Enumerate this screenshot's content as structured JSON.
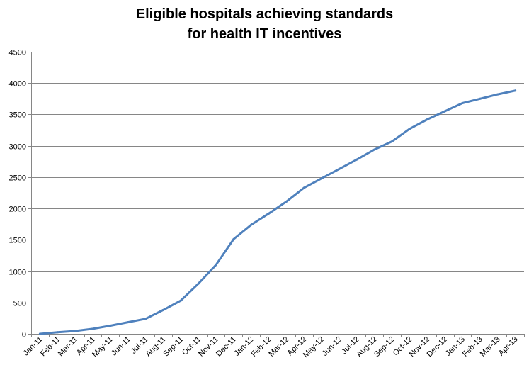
{
  "chart_data": {
    "type": "line",
    "title_lines": [
      "Eligible hospitals achieving standards",
      "for health IT incentives"
    ],
    "xlabel": "",
    "ylabel": "",
    "categories": [
      "Jan-11",
      "Feb-11",
      "Mar-11",
      "Apr-11",
      "May-11",
      "Jun-11",
      "Jul-11",
      "Aug-11",
      "Sep-11",
      "Oct-11",
      "Nov-11",
      "Dec-11",
      "Jan-12",
      "Feb-12",
      "Mar-12",
      "Apr-12",
      "May-12",
      "Jun-12",
      "Jul-12",
      "Aug-12",
      "Sep-12",
      "Oct-12",
      "Nov-12",
      "Dec-12",
      "Jan-13",
      "Feb-13",
      "Mar-13",
      "Apr-13"
    ],
    "series": [
      {
        "values": [
          0,
          25,
          45,
          80,
          130,
          185,
          240,
          380,
          530,
          800,
          1100,
          1510,
          1740,
          1920,
          2110,
          2330,
          2480,
          2630,
          2780,
          2940,
          3070,
          3270,
          3420,
          3550,
          3680,
          3750,
          3820,
          3880
        ],
        "color": "#4f81bd"
      }
    ],
    "ylim": [
      0,
      4500
    ],
    "yticks": [
      0,
      500,
      1000,
      1500,
      2000,
      2500,
      3000,
      3500,
      4000,
      4500
    ],
    "grid": true,
    "legend": "none"
  }
}
